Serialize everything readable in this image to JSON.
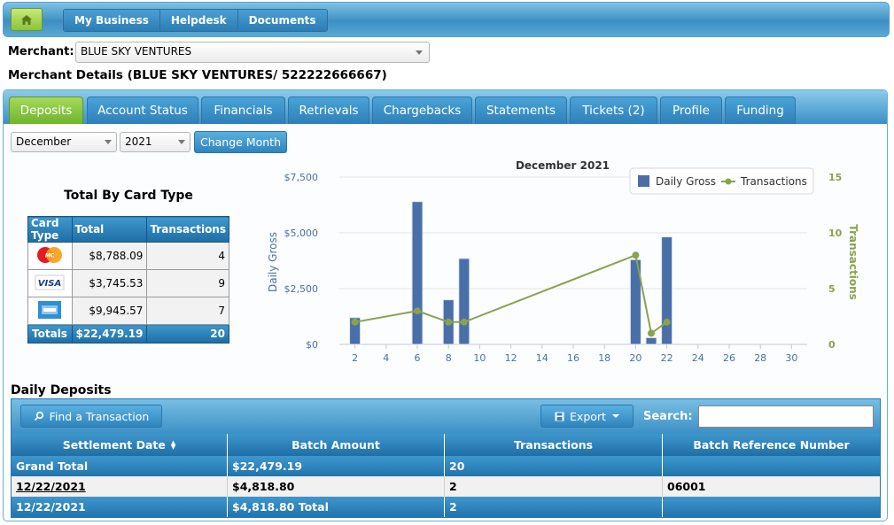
{
  "topnav": {
    "home_icon": "home-icon",
    "items": [
      "My Business",
      "Helpdesk",
      "Documents"
    ]
  },
  "merchant": {
    "label": "Merchant:",
    "selected": "BLUE SKY VENTURES",
    "details_title": "Merchant Details (BLUE SKY VENTURES/ 522222666667)"
  },
  "tabs": [
    {
      "label": "Deposits",
      "active": true
    },
    {
      "label": "Account Status"
    },
    {
      "label": "Financials"
    },
    {
      "label": "Retrievals"
    },
    {
      "label": "Chargebacks"
    },
    {
      "label": "Statements"
    },
    {
      "label": "Tickets (2)"
    },
    {
      "label": "Profile"
    },
    {
      "label": "Funding"
    }
  ],
  "month_filter": {
    "month": "December",
    "year": "2021",
    "button": "Change Month"
  },
  "card_totals": {
    "title": "Total By Card Type",
    "headers": [
      "Card Type",
      "Total",
      "Transactions"
    ],
    "rows": [
      {
        "card": "MasterCard",
        "total": "$8,788.09",
        "transactions": "4"
      },
      {
        "card": "VISA",
        "total": "$3,745.53",
        "transactions": "9"
      },
      {
        "card": "American Express",
        "total": "$9,945.57",
        "transactions": "7"
      }
    ],
    "totals": {
      "label": "Totals",
      "total": "$22,479.19",
      "transactions": "20"
    }
  },
  "chart_data": {
    "type": "bar",
    "title": "December 2021",
    "ylabel": "Daily Gross",
    "y2label": "Transactions",
    "ylim": [
      0,
      7500
    ],
    "y2lim": [
      0,
      15
    ],
    "yticks": [
      "$0",
      "$2,500",
      "$5,000",
      "$7,500"
    ],
    "y2ticks": [
      "0",
      "5",
      "10",
      "15"
    ],
    "xticks": [
      "2",
      "4",
      "6",
      "8",
      "10",
      "12",
      "14",
      "16",
      "18",
      "20",
      "22",
      "24",
      "26",
      "28",
      "30"
    ],
    "xlim": [
      1,
      31
    ],
    "legend_position": "top-right",
    "series": [
      {
        "name": "Daily Gross",
        "kind": "bar",
        "color": "#4a6fa8",
        "x": [
          2,
          6,
          8,
          9,
          20,
          21,
          22
        ],
        "values": [
          1200,
          6400,
          2000,
          3850,
          3800,
          300,
          4818.8
        ]
      },
      {
        "name": "Transactions",
        "kind": "line",
        "color": "#8aa24a",
        "x": [
          2,
          6,
          8,
          9,
          20,
          21,
          22
        ],
        "values": [
          2,
          3,
          2,
          2,
          8,
          1,
          2
        ]
      }
    ]
  },
  "daily_deposits": {
    "title": "Daily Deposits",
    "find_button": "Find a Transaction",
    "export_button": "Export",
    "search_label": "Search:",
    "search_value": "",
    "headers": [
      "Settlement Date",
      "Batch Amount",
      "Transactions",
      "Batch Reference Number"
    ],
    "grand_total": {
      "label": "Grand Total",
      "amount": "$22,479.19",
      "transactions": "20",
      "ref": ""
    },
    "rows": [
      {
        "date": "12/22/2021",
        "amount": "$4,818.80",
        "transactions": "2",
        "ref": "06001"
      }
    ],
    "subtotal": {
      "date": "12/22/2021",
      "amount": "$4,818.80 Total",
      "transactions": "2",
      "ref": ""
    }
  }
}
